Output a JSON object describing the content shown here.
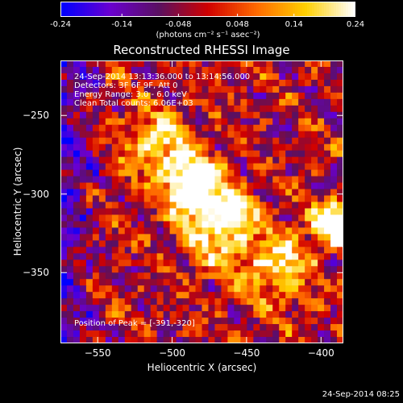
{
  "colorbar": {
    "ticks": [
      "-0.24",
      "-0.14",
      "-0.048",
      "0.048",
      "0.14",
      "0.24"
    ],
    "tick_values": [
      -0.24,
      -0.14,
      -0.048,
      0.048,
      0.14,
      0.24
    ],
    "units_text": "(photons cm⁻² s⁻¹ asec⁻²)",
    "min": -0.24,
    "max": 0.24
  },
  "title": "Reconstructed RHESSI Image",
  "annotations": {
    "time_range": "24-Sep-2014 13:13:36.000 to 13:14:56.000",
    "detectors": "Detectors: 3F 6F 9F, Att 0",
    "energy": "Energy Range: 3.0 - 6.0 keV",
    "clean": "Clean    Total counts: 6.06E+03",
    "peak": "Position of Peak = [-391,-320]"
  },
  "footer_timestamp": "24-Sep-2014 08:25",
  "chart_data": {
    "type": "heatmap",
    "title": "Reconstructed RHESSI Image",
    "xlabel": "Heliocentric X (arcsec)",
    "ylabel": "Heliocentric Y (arcsec)",
    "xlim": [
      -575,
      -385
    ],
    "ylim": [
      -395,
      -215
    ],
    "x_ticks": [
      -550,
      -500,
      -450,
      -400
    ],
    "y_ticks": [
      -250,
      -300,
      -350
    ],
    "x_tick_labels": [
      "−550",
      "−500",
      "−450",
      "−400"
    ],
    "y_tick_labels": [
      "−250",
      "−300",
      "−350"
    ],
    "peak_position": [
      -391,
      -320
    ],
    "value_range": [
      -0.24,
      0.24
    ],
    "colormap": [
      "#0000ff",
      "#6a00d0",
      "#5a1060",
      "#d00000",
      "#ff6a00",
      "#ffd000",
      "#ffffff"
    ]
  }
}
